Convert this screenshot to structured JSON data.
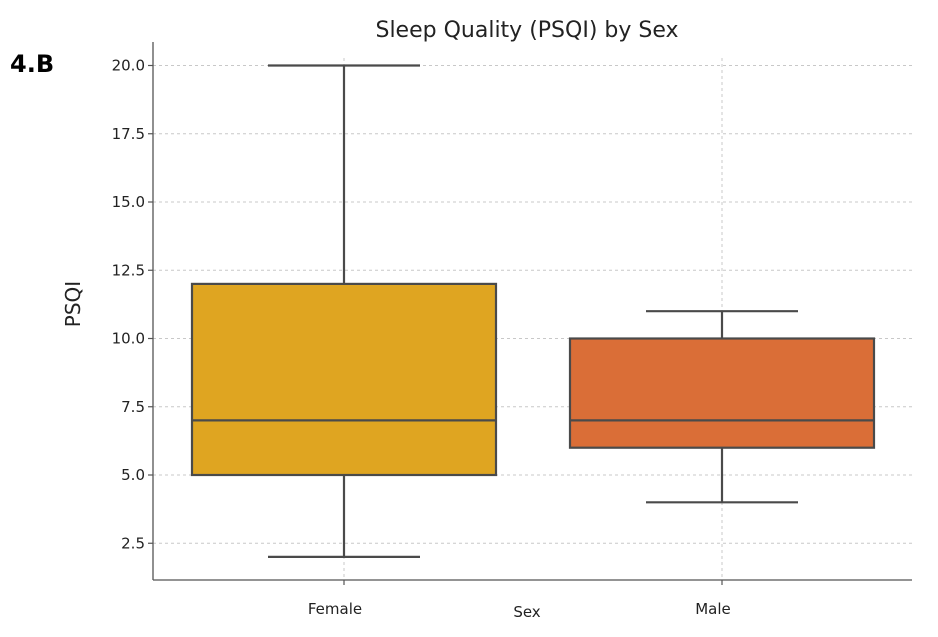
{
  "panel_label": "4.B",
  "chart_data": {
    "type": "box",
    "title": "Sleep Quality (PSQI) by Sex",
    "xlabel": "Sex",
    "ylabel": "PSQI",
    "ylim": [
      1.5,
      21.0
    ],
    "yticks": [
      2.5,
      5.0,
      7.5,
      10.0,
      12.5,
      15.0,
      17.5,
      20.0
    ],
    "ytick_labels": [
      "2.5",
      "5.0",
      "7.5",
      "10.0",
      "12.5",
      "15.0",
      "17.5",
      "20.0"
    ],
    "grid": true,
    "categories": [
      "Female",
      "Male"
    ],
    "boxes": [
      {
        "category": "Female",
        "whisker_low": 2.0,
        "q1": 5.0,
        "median": 7.0,
        "q3": 12.0,
        "whisker_high": 20.0,
        "color": "#DFA521"
      },
      {
        "category": "Male",
        "whisker_low": 4.0,
        "q1": 6.0,
        "median": 7.0,
        "q3": 10.0,
        "whisker_high": 11.0,
        "color": "#DA6E37"
      }
    ]
  }
}
